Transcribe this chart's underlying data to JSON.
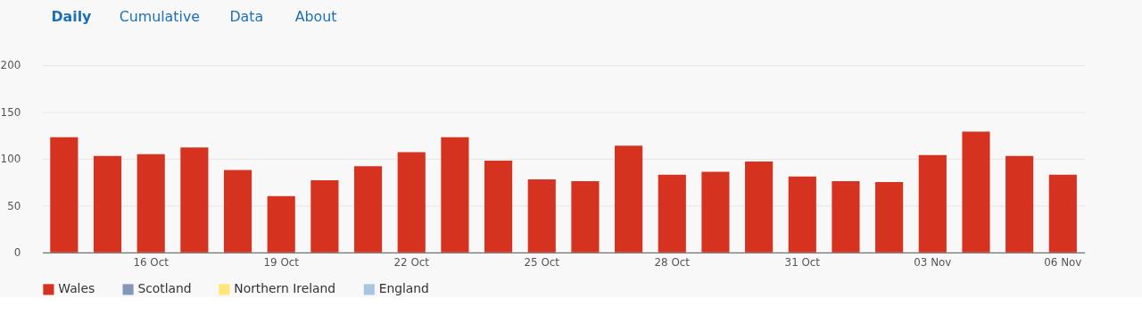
{
  "chart_data": {
    "type": "bar",
    "annotations": [
      "Daily",
      "Cumulative",
      "Data",
      "About"
    ],
    "categories": [
      null,
      null,
      "16 Oct",
      null,
      null,
      "19 Oct",
      null,
      null,
      "22 Oct",
      null,
      null,
      "25 Oct",
      null,
      null,
      "28 Oct",
      null,
      null,
      "31 Oct",
      null,
      null,
      "03 Nov",
      null,
      null,
      "06 Nov"
    ],
    "series": [
      {
        "name": "Wales",
        "color": "#d5321f",
        "values": [
          123,
          103,
          105,
          112,
          88,
          60,
          77,
          92,
          107,
          123,
          98,
          78,
          76,
          114,
          83,
          86,
          97,
          81,
          76,
          75,
          104,
          129,
          103,
          83
        ]
      },
      {
        "name": "Scotland",
        "color": "#8497b9",
        "values": [
          null,
          null,
          null,
          null,
          null,
          null,
          null,
          null,
          null,
          null,
          null,
          null,
          null,
          null,
          null,
          null,
          null,
          null,
          null,
          null,
          null,
          null,
          null,
          null
        ]
      },
      {
        "name": "Northern Ireland",
        "color": "#fde779",
        "values": [
          null,
          null,
          null,
          null,
          null,
          null,
          null,
          null,
          null,
          null,
          null,
          null,
          null,
          null,
          null,
          null,
          null,
          null,
          null,
          null,
          null,
          null,
          null,
          null
        ]
      },
      {
        "name": "England",
        "color": "#a8c6e1",
        "values": [
          null,
          null,
          null,
          null,
          null,
          null,
          null,
          null,
          null,
          null,
          null,
          null,
          null,
          null,
          null,
          null,
          null,
          null,
          null,
          null,
          null,
          null,
          null,
          null
        ]
      }
    ],
    "ylim": [
      0,
      200
    ],
    "yticks": [
      0,
      50,
      100,
      150,
      200
    ],
    "grid": "y",
    "legend": "bottom left"
  }
}
